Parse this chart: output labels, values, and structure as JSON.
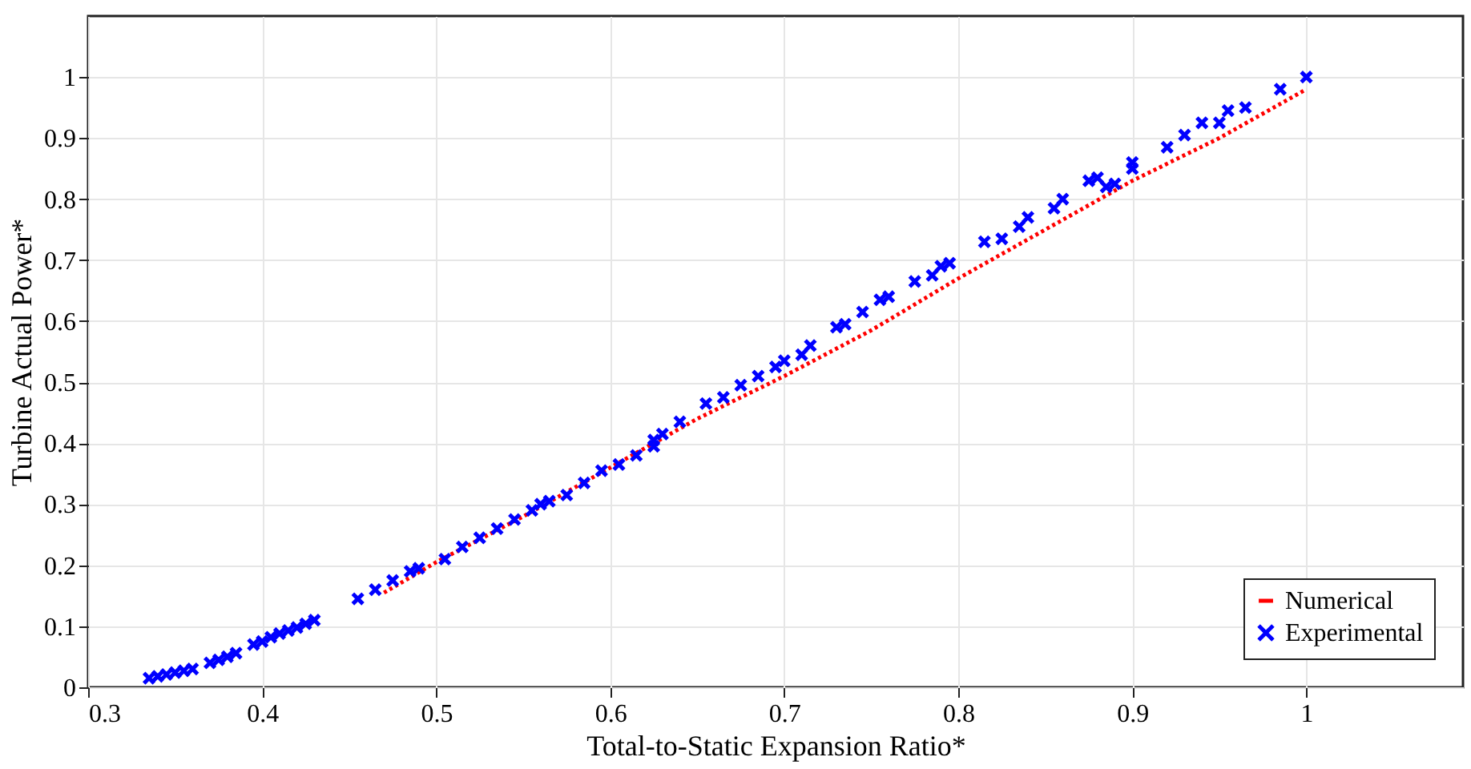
{
  "chart_data": {
    "type": "scatter",
    "xlabel": "Total-to-Static Expansion Ratio*",
    "ylabel": "Turbine Actual Power*",
    "xlim": [
      0.3,
      1.09
    ],
    "ylim": [
      0,
      1.1
    ],
    "xticks": [
      0.3,
      0.4,
      0.5,
      0.6,
      0.7,
      0.8,
      0.9,
      1
    ],
    "yticks": [
      0,
      0.1,
      0.2,
      0.3,
      0.4,
      0.5,
      0.6,
      0.7,
      0.8,
      0.9,
      1
    ],
    "grid": true,
    "legend": "bottom right",
    "series": [
      {
        "name": "Numerical",
        "type": "line",
        "line_style": "dotted",
        "marker": "none",
        "color": "#ff0000",
        "x": [
          0.47,
          0.5,
          0.55,
          0.6,
          0.65,
          0.7,
          0.75,
          0.8,
          0.85,
          0.9,
          0.95,
          1.0
        ],
        "values": [
          0.155,
          0.205,
          0.28,
          0.36,
          0.44,
          0.51,
          0.585,
          0.67,
          0.75,
          0.83,
          0.9,
          0.98
        ]
      },
      {
        "name": "Experimental",
        "marker": "cross",
        "color": "#0000ff",
        "x": [
          0.335,
          0.34,
          0.345,
          0.35,
          0.355,
          0.36,
          0.37,
          0.375,
          0.38,
          0.385,
          0.395,
          0.4,
          0.405,
          0.41,
          0.415,
          0.42,
          0.425,
          0.43,
          0.455,
          0.465,
          0.475,
          0.485,
          0.49,
          0.505,
          0.515,
          0.525,
          0.535,
          0.545,
          0.555,
          0.56,
          0.565,
          0.575,
          0.585,
          0.595,
          0.605,
          0.615,
          0.625,
          0.625,
          0.63,
          0.64,
          0.655,
          0.665,
          0.675,
          0.685,
          0.695,
          0.7,
          0.71,
          0.715,
          0.73,
          0.735,
          0.745,
          0.755,
          0.76,
          0.775,
          0.785,
          0.79,
          0.795,
          0.815,
          0.825,
          0.835,
          0.84,
          0.855,
          0.86,
          0.875,
          0.88,
          0.885,
          0.89,
          0.9,
          0.9,
          0.92,
          0.93,
          0.94,
          0.95,
          0.955,
          0.965,
          0.985,
          1.0
        ],
        "values": [
          0.015,
          0.018,
          0.021,
          0.024,
          0.027,
          0.03,
          0.04,
          0.045,
          0.05,
          0.056,
          0.07,
          0.075,
          0.082,
          0.088,
          0.093,
          0.098,
          0.104,
          0.11,
          0.145,
          0.16,
          0.175,
          0.19,
          0.195,
          0.21,
          0.23,
          0.245,
          0.26,
          0.275,
          0.29,
          0.3,
          0.305,
          0.315,
          0.335,
          0.355,
          0.365,
          0.38,
          0.405,
          0.395,
          0.415,
          0.435,
          0.465,
          0.475,
          0.495,
          0.51,
          0.525,
          0.535,
          0.545,
          0.56,
          0.59,
          0.595,
          0.615,
          0.635,
          0.64,
          0.665,
          0.675,
          0.69,
          0.695,
          0.73,
          0.735,
          0.755,
          0.77,
          0.785,
          0.8,
          0.83,
          0.835,
          0.82,
          0.825,
          0.86,
          0.85,
          0.885,
          0.905,
          0.925,
          0.925,
          0.945,
          0.95,
          0.98,
          1.0
        ]
      }
    ]
  }
}
